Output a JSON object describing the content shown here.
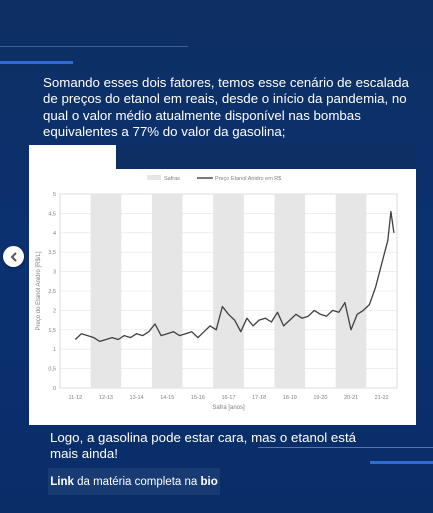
{
  "intro_text": "Somando esses dois fatores, temos esse cenário de escalada de preços do etanol em reais, desde o início da pandemia, no qual o valor médio  atualmente  disponível nas bombas equivalentes a 77% do valor da gasolina;",
  "outro_text": "Logo, a gasolina pode estar cara, mas o etanol está mais ainda!",
  "link_button": {
    "part1": "Link",
    "part2": " da matéria completa na ",
    "part3": "bio"
  },
  "carousel": {
    "prev_icon": "chevron-left-icon"
  },
  "colors": {
    "background": "#0d2f63",
    "band": "#e6e6e6",
    "line": "#404040",
    "button": "#183b74"
  },
  "chart_data": {
    "type": "line",
    "legend": [
      "Safras",
      "Preço Etanol Anidro em R$"
    ],
    "legend_position": "top",
    "xlabel": "Safra [anos]",
    "ylabel": "Preço do Etanol Anidro [R$/L]",
    "ylim": [
      0,
      5
    ],
    "yticks": [
      "0",
      "0,5",
      "1",
      "1,5",
      "2",
      "2,5",
      "3",
      "3,5",
      "4",
      "4,5",
      "5"
    ],
    "categories": [
      "11-12",
      "12-13",
      "13-14",
      "14-15",
      "15-16",
      "16-17",
      "17-18",
      "18-19",
      "19-20",
      "20-21",
      "21-22"
    ],
    "shaded_categories": [
      "12-13",
      "14-15",
      "16-17",
      "18-19",
      "20-21"
    ],
    "grid": true,
    "series": [
      {
        "name": "Preço Etanol Anidro em R$",
        "x": [
          0,
          0.2,
          0.4,
          0.6,
          0.8,
          1.0,
          1.2,
          1.4,
          1.6,
          1.8,
          2.0,
          2.2,
          2.4,
          2.6,
          2.8,
          3.0,
          3.2,
          3.4,
          3.6,
          3.8,
          4.0,
          4.2,
          4.4,
          4.6,
          4.8,
          5.0,
          5.2,
          5.4,
          5.6,
          5.8,
          6.0,
          6.2,
          6.4,
          6.6,
          6.8,
          7.0,
          7.2,
          7.4,
          7.6,
          7.8,
          8.0,
          8.2,
          8.4,
          8.6,
          8.8,
          9.0,
          9.2,
          9.4,
          9.6,
          9.8,
          10.0,
          10.1,
          10.2,
          10.3,
          10.4
        ],
        "y": [
          1.25,
          1.4,
          1.35,
          1.3,
          1.2,
          1.25,
          1.3,
          1.25,
          1.35,
          1.3,
          1.4,
          1.35,
          1.45,
          1.65,
          1.35,
          1.4,
          1.45,
          1.35,
          1.4,
          1.45,
          1.3,
          1.45,
          1.6,
          1.5,
          2.1,
          1.9,
          1.75,
          1.45,
          1.8,
          1.6,
          1.75,
          1.8,
          1.7,
          1.95,
          1.6,
          1.75,
          1.9,
          1.8,
          1.85,
          2.0,
          1.9,
          1.85,
          2.0,
          1.95,
          2.2,
          1.5,
          1.9,
          2.0,
          2.15,
          2.6,
          3.2,
          3.5,
          3.8,
          4.55,
          4.0
        ]
      }
    ]
  }
}
